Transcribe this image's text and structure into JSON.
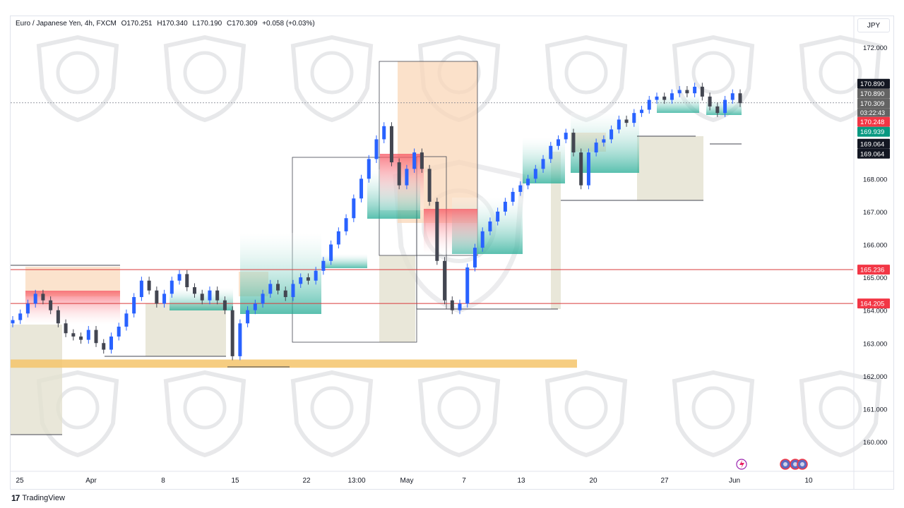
{
  "header": {
    "symbol": "Euro / Japanese Yen, 4h, FXCM",
    "open": "O170.251",
    "high": "H170.340",
    "low": "L170.190",
    "close": "C170.309",
    "change": "+0.058 (+0.03%)"
  },
  "currency_button": "JPY",
  "brand": "TradingView",
  "colors": {
    "up": "#2962ff",
    "down": "#434651",
    "supply": "#f9d7b8",
    "demand": "#e3e1cf",
    "support_band": "#f5c46b",
    "level_line": "#d93a3a",
    "price_tag": "#636363",
    "red_tag": "#f23645",
    "green_tag": "#089981",
    "dark_tag": "#131722"
  },
  "countdown": "03:22:43",
  "chart_data": {
    "type": "candlestick",
    "y_axis": {
      "ylim": [
        159.2,
        172.6
      ],
      "ticks": [
        "172.000",
        "168.000",
        "167.000",
        "166.000",
        "165.000",
        "164.000",
        "163.000",
        "162.000",
        "161.000",
        "160.000"
      ],
      "tick_values": [
        172,
        168,
        167,
        166,
        165,
        164,
        163,
        162,
        161,
        160
      ]
    },
    "x_axis": {
      "labels": [
        "25",
        "Apr",
        "8",
        "15",
        "22",
        "13:00",
        "May",
        "7",
        "13",
        "20",
        "27",
        "Jun",
        "10"
      ]
    },
    "price_tags": [
      {
        "label": "170.890",
        "value": 170.89,
        "style": "dark"
      },
      {
        "label": "170.890",
        "value": 170.89,
        "style": "gray"
      },
      {
        "label": "170.309",
        "value": 170.309,
        "style": "gray"
      },
      {
        "label": "170.248",
        "value": 170.248,
        "style": "red"
      },
      {
        "label": "169.939",
        "value": 169.939,
        "style": "green"
      },
      {
        "label": "169.064",
        "value": 169.064,
        "style": "dark"
      },
      {
        "label": "169.064",
        "value": 169.064,
        "style": "dark"
      },
      {
        "label": "165.236",
        "value": 165.236,
        "style": "red"
      },
      {
        "label": "164.205",
        "value": 164.205,
        "style": "red"
      }
    ],
    "horizontal_levels": [
      165.236,
      164.205
    ],
    "support_band": [
      162.25,
      162.5
    ],
    "close_series": [
      163.7,
      163.9,
      164.2,
      164.5,
      164.3,
      164.0,
      163.6,
      163.3,
      163.2,
      163.1,
      163.4,
      163.0,
      162.8,
      163.2,
      163.5,
      163.9,
      164.4,
      164.9,
      164.6,
      164.2,
      164.5,
      164.9,
      165.1,
      164.7,
      164.5,
      164.3,
      164.6,
      164.3,
      164.0,
      162.6,
      163.6,
      164.0,
      164.2,
      164.5,
      164.8,
      164.6,
      164.4,
      164.8,
      165.0,
      164.9,
      165.2,
      165.5,
      166.0,
      166.4,
      166.8,
      167.4,
      168.0,
      168.6,
      169.2,
      169.6,
      168.5,
      167.8,
      168.3,
      168.8,
      168.3,
      167.3,
      165.5,
      164.3,
      164.0,
      164.2,
      165.3,
      165.9,
      166.4,
      166.7,
      167.0,
      167.3,
      167.6,
      167.8,
      168.0,
      168.3,
      168.6,
      169.0,
      169.2,
      169.4,
      168.8,
      167.8,
      168.8,
      169.1,
      169.2,
      169.5,
      169.8,
      169.7,
      170.0,
      170.1,
      170.4,
      170.5,
      170.4,
      170.6,
      170.7,
      170.6,
      170.8,
      170.5,
      170.2,
      170.0,
      170.4,
      170.6,
      170.3
    ]
  }
}
